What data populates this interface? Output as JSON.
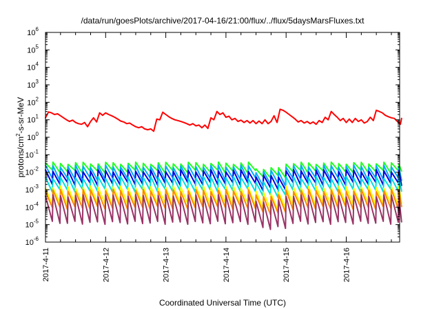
{
  "chart_data": {
    "type": "line",
    "title": "/data/run/goesPlots/archive/2017-04-16/21:00/flux/../flux/5daysMarsFluxes.txt",
    "xlabel": "Coordinated Universal Time (UTC)",
    "ylabel": "protons/cm2-s-sr-MeV",
    "ylabel_base": "protons/cm",
    "ylabel_sup": "2",
    "ylabel_rest": "-s-sr-MeV",
    "yscale": "log",
    "ylim_exp": [
      -6,
      6
    ],
    "y_ticks": [
      {
        "base": "10",
        "exp": "-6"
      },
      {
        "base": "10",
        "exp": "-5"
      },
      {
        "base": "10",
        "exp": "-4"
      },
      {
        "base": "10",
        "exp": "-3"
      },
      {
        "base": "10",
        "exp": "-2"
      },
      {
        "base": "10",
        "exp": "-1"
      },
      {
        "base": "10",
        "exp": "0"
      },
      {
        "base": "10",
        "exp": "1"
      },
      {
        "base": "10",
        "exp": "2"
      },
      {
        "base": "10",
        "exp": "3"
      },
      {
        "base": "10",
        "exp": "4"
      },
      {
        "base": "10",
        "exp": "5"
      },
      {
        "base": "10",
        "exp": "6"
      }
    ],
    "x_ticks": [
      "2017-4-11",
      "2017-4-12",
      "2017-4-13",
      "2017-4-14",
      "2017-4-15",
      "2017-4-16"
    ],
    "xlim_days": [
      0,
      5.92
    ],
    "grid": false,
    "legend": "none",
    "series": [
      {
        "color": "#ff0000",
        "points": [
          [
            0.0,
            13
          ],
          [
            0.05,
            28
          ],
          [
            0.1,
            25
          ],
          [
            0.15,
            20
          ],
          [
            0.2,
            22
          ],
          [
            0.25,
            17
          ],
          [
            0.3,
            13
          ],
          [
            0.35,
            10
          ],
          [
            0.4,
            8
          ],
          [
            0.45,
            9.5
          ],
          [
            0.5,
            7
          ],
          [
            0.55,
            6
          ],
          [
            0.6,
            5.5
          ],
          [
            0.65,
            7
          ],
          [
            0.7,
            4
          ],
          [
            0.75,
            8
          ],
          [
            0.8,
            13
          ],
          [
            0.85,
            7.5
          ],
          [
            0.9,
            25
          ],
          [
            0.95,
            18
          ],
          [
            1.0,
            25
          ],
          [
            1.05,
            20
          ],
          [
            1.1,
            17
          ],
          [
            1.15,
            14
          ],
          [
            1.2,
            11
          ],
          [
            1.25,
            8.5
          ],
          [
            1.3,
            7.5
          ],
          [
            1.35,
            6
          ],
          [
            1.4,
            6.5
          ],
          [
            1.45,
            5
          ],
          [
            1.5,
            4
          ],
          [
            1.55,
            3.5
          ],
          [
            1.6,
            4
          ],
          [
            1.65,
            3
          ],
          [
            1.7,
            2.7
          ],
          [
            1.75,
            3
          ],
          [
            1.8,
            2.2
          ],
          [
            1.85,
            11
          ],
          [
            1.9,
            10
          ],
          [
            1.95,
            27
          ],
          [
            2.0,
            20
          ],
          [
            2.05,
            15
          ],
          [
            2.1,
            12
          ],
          [
            2.15,
            10
          ],
          [
            2.2,
            9
          ],
          [
            2.25,
            8
          ],
          [
            2.3,
            7
          ],
          [
            2.35,
            6
          ],
          [
            2.4,
            5
          ],
          [
            2.45,
            6
          ],
          [
            2.5,
            4.5
          ],
          [
            2.55,
            5
          ],
          [
            2.6,
            3.5
          ],
          [
            2.65,
            5
          ],
          [
            2.7,
            3.2
          ],
          [
            2.75,
            13
          ],
          [
            2.8,
            10
          ],
          [
            2.85,
            30
          ],
          [
            2.9,
            20
          ],
          [
            2.95,
            25
          ],
          [
            3.0,
            14
          ],
          [
            3.05,
            16
          ],
          [
            3.1,
            10
          ],
          [
            3.15,
            12
          ],
          [
            3.2,
            8
          ],
          [
            3.25,
            9.5
          ],
          [
            3.3,
            7
          ],
          [
            3.35,
            9
          ],
          [
            3.4,
            6.5
          ],
          [
            3.45,
            9
          ],
          [
            3.5,
            6
          ],
          [
            3.55,
            8.5
          ],
          [
            3.6,
            6
          ],
          [
            3.65,
            10
          ],
          [
            3.7,
            6
          ],
          [
            3.75,
            8
          ],
          [
            3.8,
            17
          ],
          [
            3.85,
            7
          ],
          [
            3.9,
            40
          ],
          [
            3.95,
            35
          ],
          [
            4.0,
            27
          ],
          [
            4.05,
            20
          ],
          [
            4.1,
            15
          ],
          [
            4.15,
            11
          ],
          [
            4.2,
            7.5
          ],
          [
            4.25,
            9
          ],
          [
            4.3,
            6.5
          ],
          [
            4.35,
            8
          ],
          [
            4.4,
            6
          ],
          [
            4.45,
            7.5
          ],
          [
            4.5,
            5.5
          ],
          [
            4.55,
            9
          ],
          [
            4.6,
            7
          ],
          [
            4.65,
            14
          ],
          [
            4.7,
            10
          ],
          [
            4.75,
            30
          ],
          [
            4.8,
            20
          ],
          [
            4.85,
            14
          ],
          [
            4.9,
            9
          ],
          [
            4.95,
            12
          ],
          [
            5.0,
            7
          ],
          [
            5.05,
            11
          ],
          [
            5.1,
            7
          ],
          [
            5.15,
            12
          ],
          [
            5.2,
            8
          ],
          [
            5.25,
            10
          ],
          [
            5.3,
            6.5
          ],
          [
            5.35,
            8
          ],
          [
            5.4,
            14
          ],
          [
            5.45,
            9
          ],
          [
            5.5,
            35
          ],
          [
            5.55,
            30
          ],
          [
            5.6,
            25
          ],
          [
            5.65,
            18
          ],
          [
            5.7,
            15
          ],
          [
            5.75,
            13
          ],
          [
            5.8,
            12
          ],
          [
            5.85,
            8
          ],
          [
            5.9,
            5.5
          ],
          [
            5.92,
            12
          ]
        ]
      }
    ],
    "band_series": [
      {
        "color": "#22ff22",
        "top": 0.033,
        "bottom": 0.011
      },
      {
        "color": "#00aaff",
        "top": 0.022,
        "bottom": 0.004
      },
      {
        "color": "#0000dd",
        "top": 0.012,
        "bottom": 0.0022
      },
      {
        "color": "#00dddd",
        "top": 0.005,
        "bottom": 0.0009
      },
      {
        "color": "#ffff00",
        "top": 0.0014,
        "bottom": 0.00015
      },
      {
        "color": "#ff8800",
        "top": 0.0009,
        "bottom": 9e-05
      },
      {
        "color": "#993366",
        "top": 0.00045,
        "bottom": 1.3e-05
      }
    ],
    "band_period_days": 0.125
  }
}
